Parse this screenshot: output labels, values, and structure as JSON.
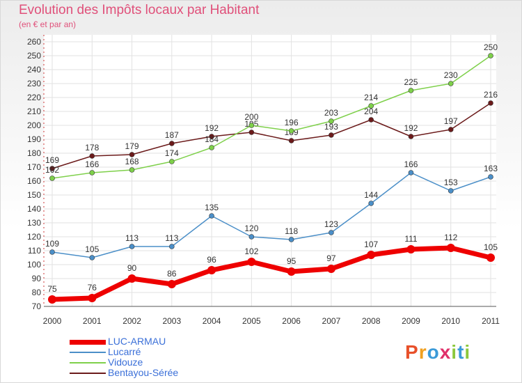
{
  "header": {
    "title": "Evolution des Impôts locaux par Habitant",
    "subtitle": "(en € et par an)"
  },
  "brand": {
    "text": "Proxiti",
    "letter_colors": [
      "#e8502a",
      "#f0a020",
      "#3a9ad8",
      "#e0306a",
      "#8cc83c",
      "#3a9ad8",
      "#8cc83c"
    ]
  },
  "chart_data": {
    "type": "line",
    "x": [
      "2000",
      "2001",
      "2002",
      "2003",
      "2004",
      "2005",
      "2006",
      "2007",
      "2008",
      "2009",
      "2010",
      "2011"
    ],
    "ylim": [
      70,
      260
    ],
    "yticks": [
      70,
      80,
      90,
      100,
      110,
      120,
      130,
      140,
      150,
      160,
      170,
      180,
      190,
      200,
      210,
      220,
      230,
      240,
      250,
      260
    ],
    "grid": true,
    "legend_position": "bottom-left",
    "series": [
      {
        "name": "LUC-ARMAU",
        "color": "#ee0000",
        "emphasis": true,
        "values": [
          75,
          76,
          90,
          86,
          96,
          102,
          95,
          97,
          107,
          111,
          112,
          105
        ]
      },
      {
        "name": "Lucarré",
        "color": "#4b8fc8",
        "emphasis": false,
        "values": [
          109,
          105,
          113,
          113,
          135,
          120,
          118,
          123,
          144,
          166,
          153,
          163
        ]
      },
      {
        "name": "Vidouze",
        "color": "#7ed04a",
        "emphasis": false,
        "values": [
          162,
          166,
          168,
          174,
          184,
          200,
          196,
          203,
          214,
          225,
          230,
          250
        ]
      },
      {
        "name": "Bentayou-Sérée",
        "color": "#6b1a1a",
        "emphasis": false,
        "values": [
          169,
          178,
          179,
          187,
          192,
          195,
          189,
          193,
          204,
          192,
          197,
          216
        ]
      }
    ]
  }
}
